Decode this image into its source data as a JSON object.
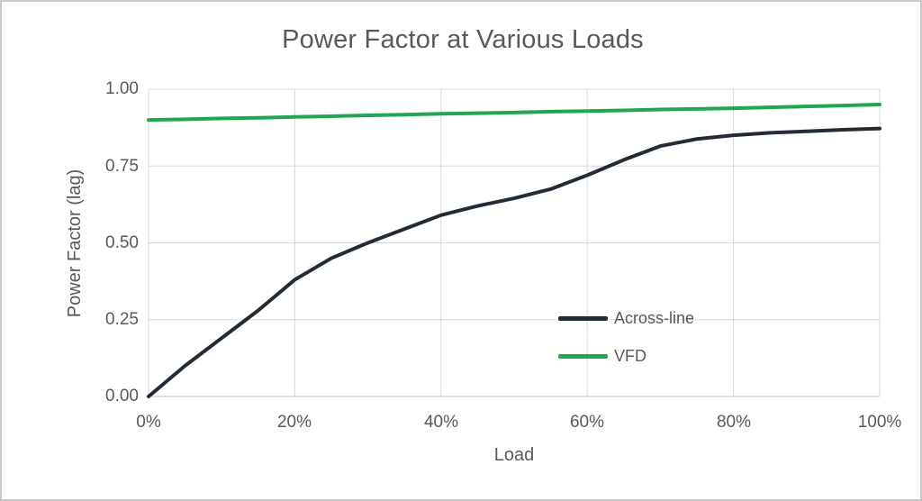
{
  "chart": {
    "title": "Power Factor at Various Loads",
    "x_axis_title": "Load",
    "y_axis_title": "Power Factor (lag)"
  },
  "legend": {
    "items": [
      {
        "label": "Across-line",
        "color": "#232b35"
      },
      {
        "label": "VFD",
        "color": "#20a850"
      }
    ]
  },
  "chart_data": {
    "type": "line",
    "title": "Power Factor at Various Loads",
    "xlabel": "Load",
    "ylabel": "Power Factor (lag)",
    "xlim": [
      0,
      100
    ],
    "ylim": [
      0,
      1
    ],
    "grid": true,
    "legend_position": "inside-right",
    "x": [
      0,
      5,
      10,
      15,
      20,
      25,
      30,
      35,
      40,
      45,
      50,
      55,
      60,
      65,
      70,
      75,
      80,
      85,
      90,
      95,
      100
    ],
    "series": [
      {
        "name": "Across-line",
        "color": "#232b35",
        "values": [
          0.0,
          0.1,
          0.19,
          0.28,
          0.38,
          0.45,
          0.5,
          0.545,
          0.59,
          0.62,
          0.645,
          0.675,
          0.72,
          0.77,
          0.815,
          0.838,
          0.85,
          0.858,
          0.863,
          0.868,
          0.872
        ]
      },
      {
        "name": "VFD",
        "color": "#20a850",
        "values": [
          0.9,
          0.902,
          0.905,
          0.907,
          0.91,
          0.912,
          0.915,
          0.917,
          0.92,
          0.922,
          0.924,
          0.927,
          0.929,
          0.931,
          0.934,
          0.936,
          0.938,
          0.941,
          0.944,
          0.947,
          0.95
        ]
      }
    ],
    "x_ticks": [
      0,
      20,
      40,
      60,
      80,
      100
    ],
    "x_tick_labels": [
      "0%",
      "20%",
      "40%",
      "60%",
      "80%",
      "100%"
    ],
    "y_ticks": [
      0,
      0.25,
      0.5,
      0.75,
      1
    ],
    "y_tick_labels_top_down": [
      "1.00",
      "0.75",
      "0.50",
      "0.25",
      "0.00"
    ],
    "colors": {
      "grid": "#d9d9d9",
      "axis_line": "#bfbfbf",
      "axis_text": "#595959",
      "title_text": "#595959",
      "border": "#c9c9c9",
      "background": "#ffffff"
    }
  }
}
